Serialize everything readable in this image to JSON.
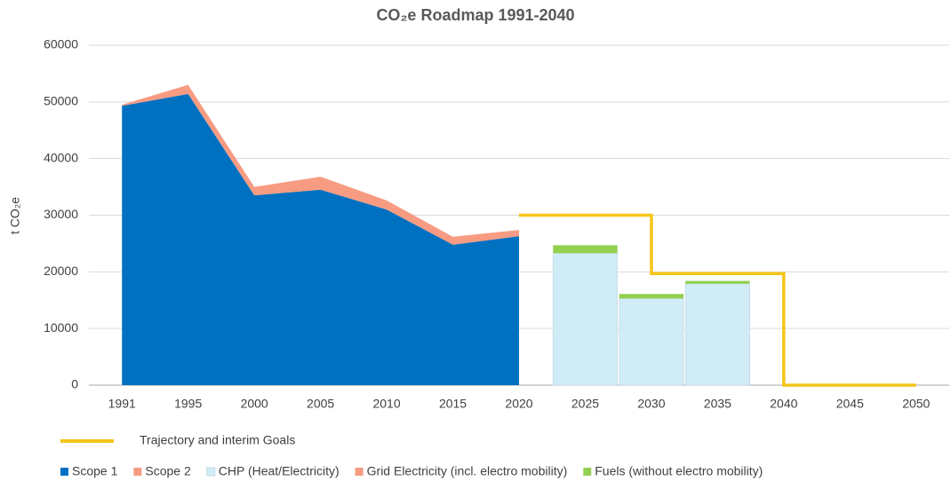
{
  "chart_data": {
    "type": "combo",
    "title": "CO₂e Roadmap 1991-2040",
    "y_label": "t CO₂e",
    "categories": [
      "1991",
      "1995",
      "2000",
      "2005",
      "2010",
      "2015",
      "2020",
      "2025",
      "2030",
      "2035",
      "2040",
      "2045",
      "2050"
    ],
    "ylim": [
      0,
      60000
    ],
    "yticks": [
      0,
      10000,
      20000,
      30000,
      40000,
      50000,
      60000
    ],
    "grid": true,
    "series": [
      {
        "name": "Trajectory and interim Goals",
        "kind": "line",
        "step": "post",
        "color": "#f5c518",
        "values": [
          null,
          null,
          null,
          null,
          null,
          null,
          30000,
          30000,
          19700,
          19700,
          0,
          0,
          0
        ]
      },
      {
        "name": "Scope 1",
        "kind": "area",
        "color": "#0070c0",
        "values": [
          49300,
          51400,
          33500,
          34500,
          31000,
          24800,
          26300,
          null,
          null,
          null,
          null,
          null,
          null
        ]
      },
      {
        "name": "Scope 2",
        "kind": "area",
        "color": "#f79c82",
        "values": [
          200,
          1600,
          1500,
          2300,
          1600,
          1400,
          1100,
          null,
          null,
          null,
          null,
          null,
          null
        ]
      },
      {
        "name": "CHP (Heat/Electricity)",
        "kind": "bar",
        "color": "#d0ecf7",
        "values": [
          null,
          null,
          null,
          null,
          null,
          null,
          null,
          23300,
          15300,
          17900,
          null,
          null,
          null
        ]
      },
      {
        "name": "Grid Electricity (incl. electro mobility)",
        "kind": "bar",
        "color": "#f79c82",
        "values": [
          null,
          null,
          null,
          null,
          null,
          null,
          null,
          0,
          0,
          0,
          null,
          null,
          null
        ]
      },
      {
        "name": "Fuels (without electro mobility)",
        "kind": "bar",
        "color": "#92d050",
        "values": [
          null,
          null,
          null,
          null,
          null,
          null,
          null,
          1400,
          800,
          500,
          null,
          null,
          null
        ]
      }
    ]
  }
}
